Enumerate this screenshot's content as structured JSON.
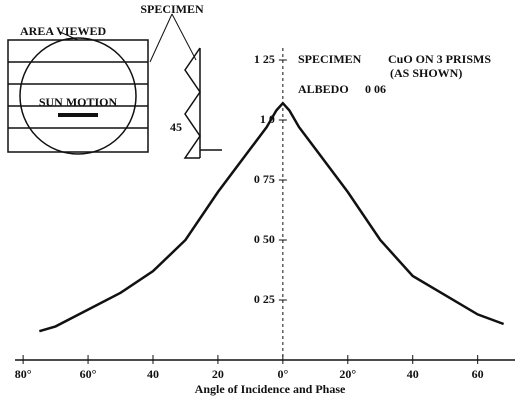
{
  "chart_data": {
    "type": "line",
    "x_label": "Angle of Incidence and Phase",
    "annotations": [
      "SPECIMEN",
      "CuO ON 3 PRISMS",
      "(AS SHOWN)",
      "ALBEDO",
      "0 06"
    ],
    "inset_labels": [
      "SPECIMEN",
      "AREA VIEWED",
      "SUN MOTION",
      "45"
    ],
    "x": [
      -75,
      -70,
      -60,
      -50,
      -40,
      -30,
      -20,
      -10,
      -5,
      -2,
      0,
      2,
      5,
      10,
      20,
      30,
      40,
      50,
      60,
      68
    ],
    "series": [
      {
        "color": "#111111",
        "values": [
          0.12,
          0.14,
          0.21,
          0.28,
          0.37,
          0.5,
          0.7,
          0.88,
          0.97,
          1.04,
          1.07,
          1.04,
          0.97,
          0.88,
          0.7,
          0.5,
          0.35,
          0.27,
          0.19,
          0.15
        ]
      }
    ],
    "xlim": [
      -82.5,
      71.5
    ],
    "ylim": [
      0,
      1.3
    ],
    "xticks": [
      {
        "value": -80,
        "label": "80°"
      },
      {
        "value": -60,
        "label": "60°"
      },
      {
        "value": -40,
        "label": "40"
      },
      {
        "value": -20,
        "label": "20"
      },
      {
        "value": 0,
        "label": "0°"
      },
      {
        "value": 20,
        "label": "20°"
      },
      {
        "value": 40,
        "label": "40"
      },
      {
        "value": 60,
        "label": "60"
      }
    ],
    "yticks": [
      {
        "value": 0.25,
        "label": "0 25"
      },
      {
        "value": 0.5,
        "label": "0 50"
      },
      {
        "value": 0.75,
        "label": "0 75"
      },
      {
        "value": 1.0,
        "label": "1 0"
      },
      {
        "value": 1.25,
        "label": "1 25"
      }
    ]
  }
}
